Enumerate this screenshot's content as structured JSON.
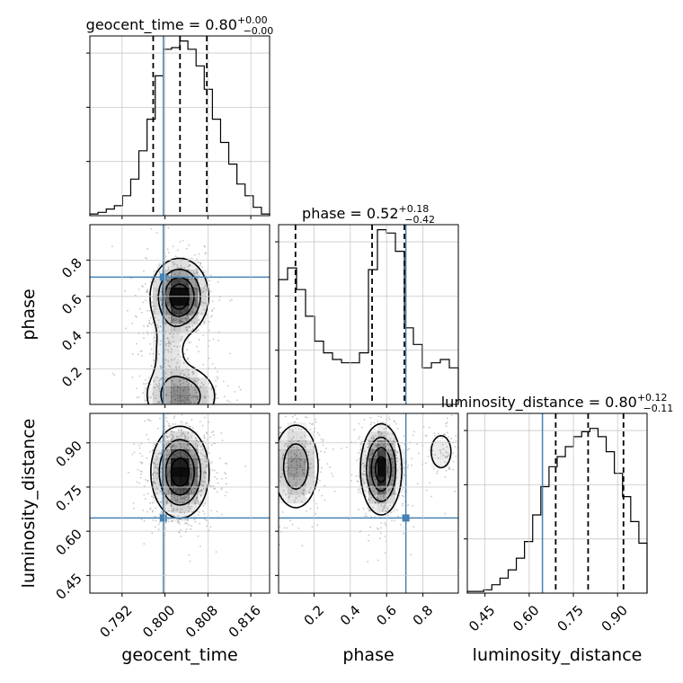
{
  "chart_data": {
    "type": "corner",
    "parameters": [
      "geocent_time",
      "phase",
      "luminosity_distance"
    ],
    "truths": {
      "geocent_time": 0.7997,
      "phase": 0.706,
      "luminosity_distance": 0.645
    },
    "colors": {
      "truth": "#4682b4",
      "grid": "#c8c8c8",
      "hist": "#000000",
      "density": "#000000"
    },
    "grid": true,
    "titles": {
      "geocent_time": {
        "label": "geocent_time = 0.80",
        "plus": "+0.00",
        "minus": "−0.00"
      },
      "phase": {
        "label": "phase = 0.52",
        "plus": "+0.18",
        "minus": "−0.42"
      },
      "luminosity_distance": {
        "label": "luminosity_distance = 0.80",
        "plus": "+0.12",
        "minus": "−0.11"
      }
    },
    "axes": {
      "geocent_time": {
        "range": [
          0.786,
          0.8195
        ],
        "ticks": [
          0.792,
          0.8,
          0.808,
          0.816
        ],
        "tick_labels": [
          "0.792",
          "0.800",
          "0.808",
          "0.816"
        ],
        "label": "geocent_time"
      },
      "phase": {
        "range": [
          0.005,
          0.995
        ],
        "ticks": [
          0.2,
          0.4,
          0.6,
          0.8
        ],
        "tick_labels": [
          "0.2",
          "0.4",
          "0.6",
          "0.8"
        ],
        "label": "phase"
      },
      "luminosity_distance": {
        "range": [
          0.39,
          1.0
        ],
        "ticks": [
          0.45,
          0.6,
          0.75,
          0.9
        ],
        "tick_labels": [
          "0.45",
          "0.60",
          "0.75",
          "0.90"
        ],
        "label": "luminosity_distance"
      }
    },
    "histograms": {
      "geocent_time": {
        "bins": [
          0.786,
          0.8195
        ],
        "counts": [
          0.01,
          0.02,
          0.04,
          0.06,
          0.12,
          0.22,
          0.39,
          0.58,
          0.84,
          1.0,
          1.01,
          1.05,
          1.0,
          0.9,
          0.76,
          0.58,
          0.44,
          0.31,
          0.19,
          0.12,
          0.05,
          0.01
        ],
        "quantiles": [
          0.7978,
          0.8028,
          0.8078
        ]
      },
      "phase": {
        "bins": [
          0.005,
          0.995
        ],
        "counts": [
          0.75,
          0.82,
          0.69,
          0.53,
          0.38,
          0.31,
          0.27,
          0.25,
          0.25,
          0.31,
          0.81,
          1.05,
          1.03,
          0.92,
          0.46,
          0.36,
          0.22,
          0.25,
          0.27,
          0.22
        ],
        "quantiles": [
          0.098,
          0.52,
          0.698
        ]
      },
      "luminosity_distance": {
        "bins": [
          0.39,
          1.0
        ],
        "counts": [
          0.01,
          0.01,
          0.02,
          0.05,
          0.09,
          0.14,
          0.21,
          0.31,
          0.47,
          0.64,
          0.76,
          0.82,
          0.88,
          0.94,
          0.97,
          0.99,
          0.94,
          0.85,
          0.72,
          0.58,
          0.43,
          0.3
        ],
        "quantiles": [
          0.69,
          0.8,
          0.92
        ]
      }
    },
    "density_panels": [
      {
        "x": "geocent_time",
        "y": "phase",
        "blobs": [
          {
            "mx": 0.8027,
            "my": 0.6,
            "sx": 0.0026,
            "sy": 0.1,
            "w": 1.0
          },
          {
            "mx": 0.803,
            "my": 0.05,
            "sx": 0.0035,
            "sy": 0.09,
            "w": 0.55
          },
          {
            "mx": 0.8007,
            "my": 0.3,
            "sx": 0.0022,
            "sy": 0.12,
            "w": 0.18
          }
        ]
      },
      {
        "x": "geocent_time",
        "y": "luminosity_distance",
        "blobs": [
          {
            "mx": 0.8028,
            "my": 0.8,
            "sx": 0.0026,
            "sy": 0.075,
            "w": 1.0
          }
        ]
      },
      {
        "x": "phase",
        "y": "luminosity_distance",
        "blobs": [
          {
            "mx": 0.57,
            "my": 0.81,
            "sx": 0.055,
            "sy": 0.075,
            "w": 1.0
          },
          {
            "mx": 0.1,
            "my": 0.82,
            "sx": 0.07,
            "sy": 0.08,
            "w": 0.55
          },
          {
            "mx": 0.9,
            "my": 0.87,
            "sx": 0.06,
            "sy": 0.06,
            "w": 0.18
          }
        ]
      }
    ]
  }
}
